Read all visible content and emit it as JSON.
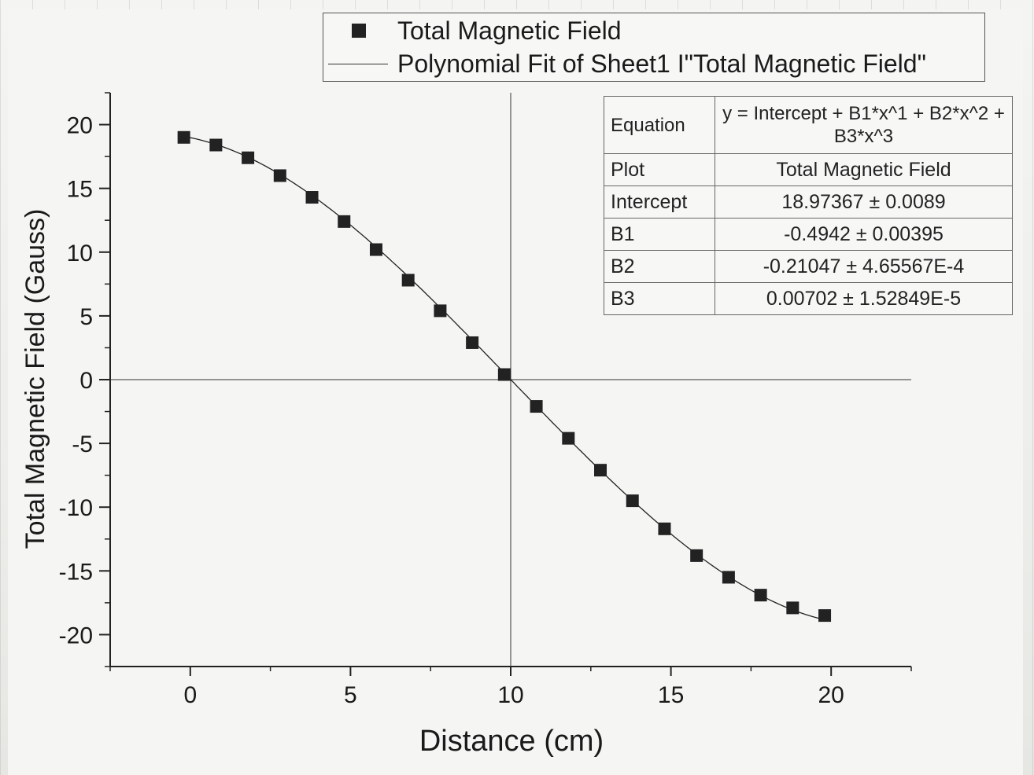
{
  "legend": {
    "series_label": "Total Magnetic Field",
    "fit_label": "Polynomial Fit of Sheet1 I\"Total Magnetic Field\""
  },
  "fit_table": {
    "equation_label": "Equation",
    "equation_value": "y = Intercept + B1*x^1 + B2*x^2 + B3*x^3",
    "rows": [
      {
        "label": "Plot",
        "value": "Total Magnetic Field"
      },
      {
        "label": "Intercept",
        "value": "18.97367 ± 0.0089"
      },
      {
        "label": "B1",
        "value": "-0.4942 ± 0.00395"
      },
      {
        "label": "B2",
        "value": "-0.21047 ± 4.65567E-4"
      },
      {
        "label": "B3",
        "value": "0.00702 ± 1.52849E-5"
      }
    ]
  },
  "chart_data": {
    "type": "scatter",
    "title": "",
    "xlabel": "Distance (cm)",
    "ylabel": "Total Magnetic Field (Gauss)",
    "xlim": [
      -2.5,
      22.5
    ],
    "ylim": [
      -22.5,
      22.5
    ],
    "x_ticks": [
      0,
      5,
      10,
      15,
      20
    ],
    "y_ticks": [
      20,
      15,
      10,
      5,
      0,
      -5,
      -10,
      -15,
      -20
    ],
    "series": [
      {
        "name": "Total Magnetic Field",
        "x": [
          -0.2,
          0.8,
          1.8,
          2.8,
          3.8,
          4.8,
          5.8,
          6.8,
          7.8,
          8.8,
          9.8,
          10.8,
          11.8,
          12.8,
          13.8,
          14.8,
          15.8,
          16.8,
          17.8,
          18.8,
          19.8
        ],
        "y": [
          19.0,
          18.4,
          17.4,
          16.0,
          14.3,
          12.4,
          10.2,
          7.8,
          5.4,
          2.9,
          0.4,
          -2.1,
          -4.6,
          -7.1,
          -9.5,
          -11.7,
          -13.8,
          -15.5,
          -16.9,
          -17.9,
          -18.5
        ]
      }
    ],
    "fit": {
      "name": "Polynomial Fit of Sheet1 I\"Total Magnetic Field\"",
      "intercept": 18.97367,
      "b1": -0.4942,
      "b2": -0.21047,
      "b3": 0.00702
    },
    "grid": false,
    "legend_position": "top"
  }
}
